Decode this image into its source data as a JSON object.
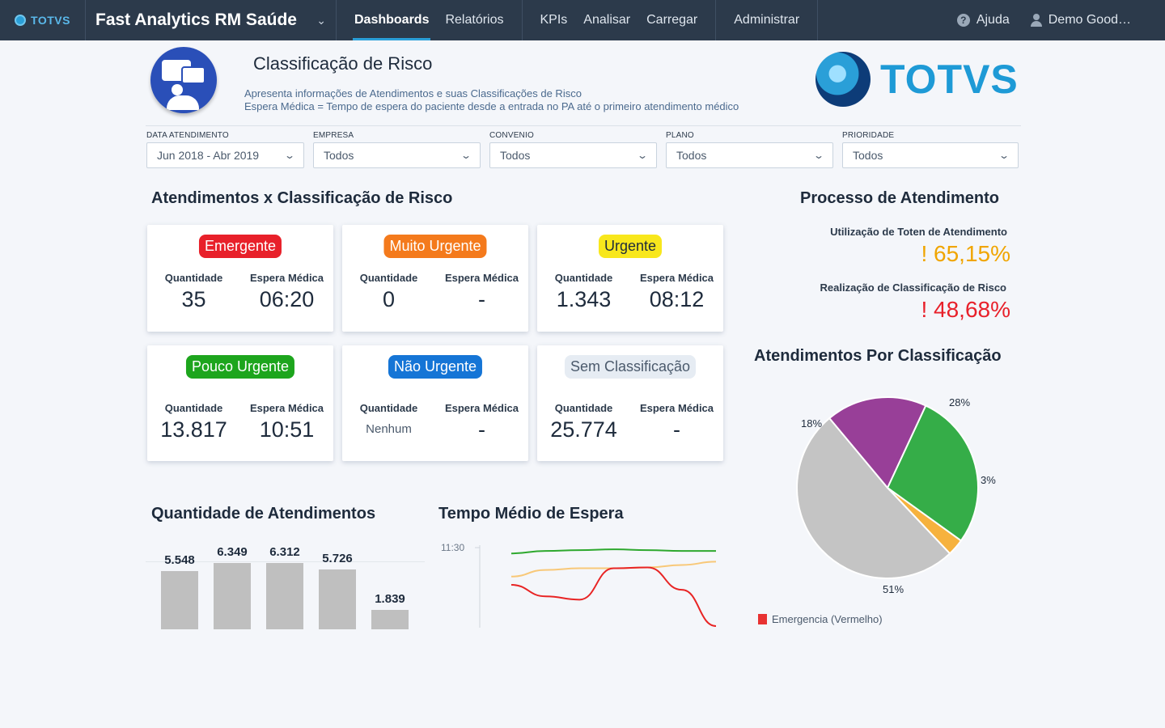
{
  "nav": {
    "logo_text": "TOTVS",
    "app_name": "Fast Analytics RM Saúde",
    "tabs": [
      "Dashboards",
      "Relatórios"
    ],
    "actions": [
      "KPIs",
      "Analisar",
      "Carregar"
    ],
    "admin": "Administrar",
    "help": "Ajuda",
    "user": "Demo Good…"
  },
  "header": {
    "title": "Classificação de Risco",
    "line1": "Apresenta informações de Atendimentos e suas Classificações de Risco",
    "line2": "Espera Médica = Tempo de espera do paciente desde a entrada no PA até o primeiro atendimento médico",
    "brand": "TOTVS"
  },
  "filters": [
    {
      "label": "DATA ATENDIMENTO",
      "value": "Jun 2018 - Abr 2019"
    },
    {
      "label": "EMPRESA",
      "value": "Todos"
    },
    {
      "label": "CONVENIO",
      "value": "Todos"
    },
    {
      "label": "PLANO",
      "value": "Todos"
    },
    {
      "label": "PRIORIDADE",
      "value": "Todos"
    }
  ],
  "section_risk": "Atendimentos x Classificação de Risco",
  "cards": [
    {
      "badge": "Emergente",
      "color": "#e8202a",
      "text_color": "#ffffff",
      "q_label": "Quantidade",
      "e_label": "Espera Médica",
      "q": "35",
      "e": "06:20"
    },
    {
      "badge": "Muito Urgente",
      "color": "#f47a1c",
      "text_color": "#ffffff",
      "q_label": "Quantidade",
      "e_label": "Espera Médica",
      "q": "0",
      "e": "-"
    },
    {
      "badge": "Urgente",
      "color": "#f8e71c",
      "text_color": "#1e2b3c",
      "q_label": "Quantidade",
      "e_label": "Espera Médica",
      "q": "1.343",
      "e": "08:12"
    },
    {
      "badge": "Pouco Urgente",
      "color": "#1da51d",
      "text_color": "#ffffff",
      "q_label": "Quantidade",
      "e_label": "Espera Médica",
      "q": "13.817",
      "e": "10:51"
    },
    {
      "badge": "Não Urgente",
      "color": "#1575d6",
      "text_color": "#ffffff",
      "q_label": "Quantidade",
      "e_label": "Espera Médica",
      "q": "Nenhum",
      "e": "-"
    },
    {
      "badge": "Sem Classificação",
      "color": "#e6ecf3",
      "text_color": "#4b5a6c",
      "q_label": "Quantidade",
      "e_label": "Espera Médica",
      "q": "25.774",
      "e": "-"
    }
  ],
  "process": {
    "title": "Processo de Atendimento",
    "m1_label": "Utilização de Toten de Atendimento",
    "m1_value": "! 65,15%",
    "m1_color": "#f0a500",
    "m2_label": "Realização de Classificação de Risco",
    "m2_value": "! 48,68%",
    "m2_color": "#e8202a"
  },
  "section_qty": "Quantidade de Atendimentos",
  "section_wait": "Tempo Médio de Espera",
  "section_pie": "Atendimentos Por Classificação",
  "chart_data": [
    {
      "type": "bar",
      "title": "Quantidade de Atendimentos",
      "values": [
        5548,
        6349,
        6312,
        5726,
        1839
      ],
      "labels": [
        "5.548",
        "6.349",
        "6.312",
        "5.726",
        "1.839"
      ],
      "color": "#bfbfbf"
    },
    {
      "type": "line",
      "title": "Tempo Médio de Espera",
      "y_tick": "11:30",
      "series": [
        {
          "color": "#2ea82e",
          "values": [
            0.9,
            0.93,
            0.94,
            0.95,
            0.94,
            0.93,
            0.93
          ]
        },
        {
          "color": "#f8c878",
          "values": [
            0.62,
            0.7,
            0.72,
            0.72,
            0.73,
            0.76,
            0.8
          ]
        },
        {
          "color": "#e82424",
          "values": [
            0.52,
            0.38,
            0.34,
            0.72,
            0.73,
            0.46,
            0.02
          ]
        }
      ]
    },
    {
      "type": "pie",
      "title": "Atendimentos Por Classificação",
      "slices": [
        {
          "label": "28%",
          "value": 28,
          "color": "#35ad48"
        },
        {
          "label": "3%",
          "value": 3,
          "color": "#f6b23e"
        },
        {
          "label": "51%",
          "value": 51,
          "color": "#c4c4c4"
        },
        {
          "label": "18%",
          "value": 18,
          "color": "#983f98"
        }
      ],
      "legend": "Emergencia (Vermelho)",
      "legend_color": "#e83232"
    }
  ]
}
